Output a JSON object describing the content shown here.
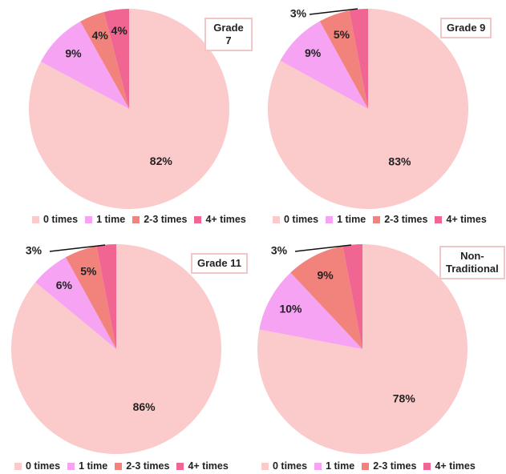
{
  "colors": [
    "#fbcaca",
    "#f6a3f4",
    "#f2827c",
    "#f06592"
  ],
  "chart_data": [
    {
      "type": "pie",
      "title": "Grade 7",
      "labels": [
        "0 times",
        "1 time",
        "2-3 times",
        "4+ times"
      ],
      "values": [
        82,
        9,
        4,
        4
      ],
      "value_labels": [
        "82%",
        "9%",
        "4%",
        "4%"
      ]
    },
    {
      "type": "pie",
      "title": "Grade 9",
      "labels": [
        "0 times",
        "1 time",
        "2-3 times",
        "4+ times"
      ],
      "values": [
        83,
        9,
        5,
        3
      ],
      "value_labels": [
        "83%",
        "9%",
        "5%",
        "3%"
      ]
    },
    {
      "type": "pie",
      "title": "Grade 11",
      "labels": [
        "0 times",
        "1 time",
        "2-3 times",
        "4+ times"
      ],
      "values": [
        86,
        6,
        5,
        3
      ],
      "value_labels": [
        "86%",
        "6%",
        "5%",
        "3%"
      ]
    },
    {
      "type": "pie",
      "title": "Non-\nTraditional",
      "labels": [
        "0 times",
        "1 time",
        "2-3 times",
        "4+ times"
      ],
      "values": [
        78,
        10,
        9,
        3
      ],
      "value_labels": [
        "78%",
        "10%",
        "9%",
        "3%"
      ]
    }
  ]
}
